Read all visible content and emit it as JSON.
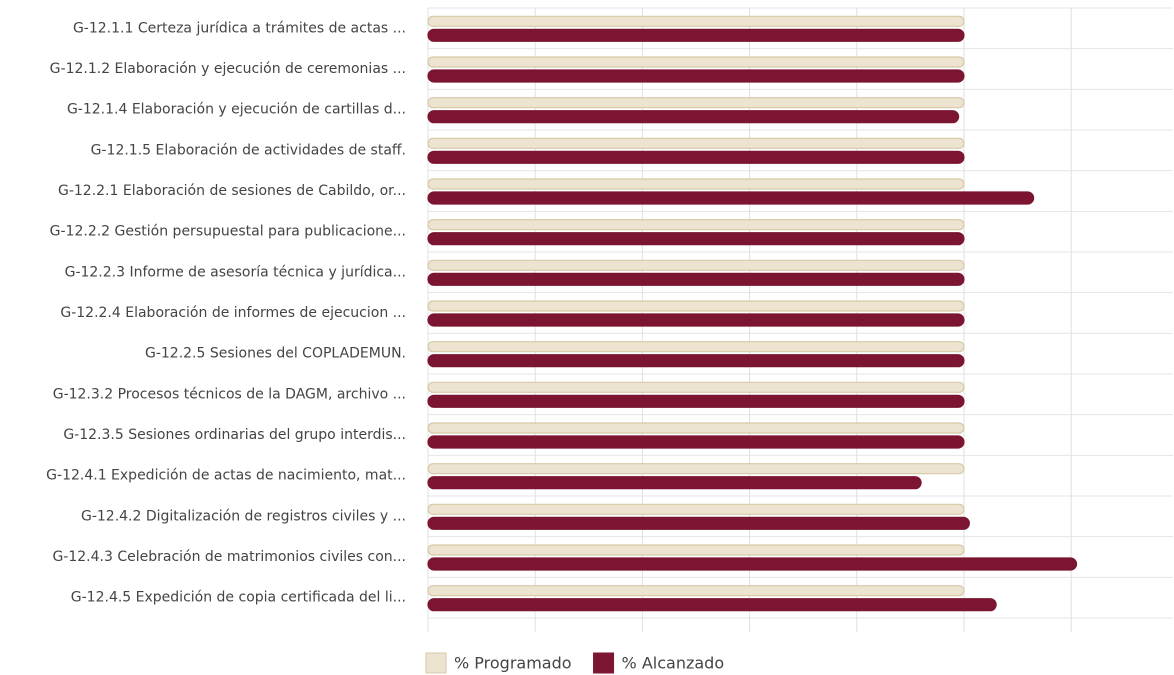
{
  "chart_data": {
    "type": "hbar",
    "categories": [
      "G-12.1.1  Certeza jurídica a trámites de actas ...",
      "G-12.1.2 Elaboración y ejecución de ceremonias ...",
      "G-12.1.4 Elaboración y ejecución de cartillas d...",
      "G-12.1.5 Elaboración de actividades de staff.",
      "G-12.2.1 Elaboración de sesiones de Cabildo, or...",
      "G-12.2.2 Gestión persupuestal para publicacione...",
      "G-12.2.3 Informe de asesoría técnica y jurídica...",
      "G-12.2.4  Elaboración de informes de ejecucion ...",
      "G-12.2.5 Sesiones del COPLADEMUN.",
      "G-12.3.2 Procesos técnicos de la DAGM, archivo ...",
      "G-12.3.5 Sesiones ordinarias del grupo interdis...",
      "G-12.4.1 Expedición de actas de nacimiento, mat...",
      "G-12.4.2 Digitalización de registros civiles y ...",
      "G-12.4.3 Celebración de matrimonios civiles con...",
      "G-12.4.5 Expedición de copia certificada del li..."
    ],
    "series": [
      {
        "name": "% Programado",
        "color": "#ece3d0",
        "stroke": "#d6c9a8",
        "values": [
          100,
          100,
          100,
          100,
          100,
          100,
          100,
          100,
          100,
          100,
          100,
          100,
          100,
          100,
          100
        ]
      },
      {
        "name": "% Alcanzado",
        "color": "#7b1531",
        "stroke": "#7b1531",
        "values": [
          100,
          100,
          99,
          100,
          113,
          100,
          100,
          100,
          100,
          100,
          100,
          92,
          101,
          121,
          106
        ]
      }
    ],
    "xlim": [
      0,
      139
    ],
    "xticks": [
      0,
      20,
      40,
      60,
      80,
      100,
      120
    ],
    "grid": true,
    "legend": "bottom"
  }
}
